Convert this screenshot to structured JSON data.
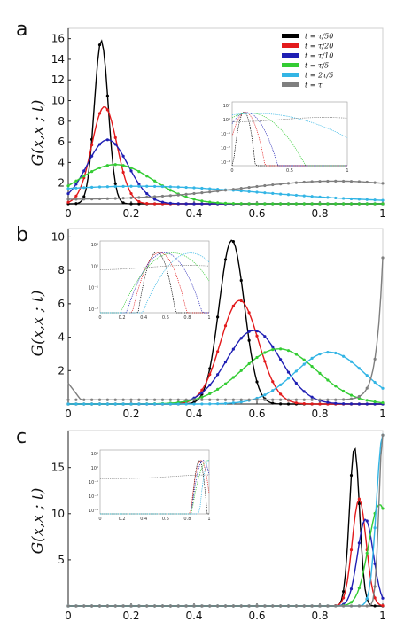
{
  "chart_data": [
    {
      "type": "line",
      "panel_label": "a",
      "ylabel": "G(x,x ; t)",
      "xlim": [
        0,
        1
      ],
      "ylim": [
        0,
        17
      ],
      "x_ticks": [
        "0",
        "0.2",
        "0.4",
        "0.6",
        "0.8",
        "1"
      ],
      "y_ticks": [
        "2",
        "4",
        "6",
        "8",
        "10",
        "12",
        "14",
        "16"
      ],
      "legend": {
        "position": "top-right",
        "entries": [
          {
            "label": "t = τ/50",
            "color": "#000000"
          },
          {
            "label": "t = τ/20",
            "color": "#e31a1c"
          },
          {
            "label": "t = τ/10",
            "color": "#1f1fb4"
          },
          {
            "label": "t = τ/5",
            "color": "#33cc33"
          },
          {
            "label": "t = 2τ/5",
            "color": "#33b5e5"
          },
          {
            "label": "t = τ",
            "color": "#7f7f7f"
          }
        ]
      },
      "series": [
        {
          "color": "#000000",
          "peak_x": 0.105,
          "peak_y": 15.8,
          "width": 0.022
        },
        {
          "color": "#e31a1c",
          "peak_x": 0.115,
          "peak_y": 9.4,
          "width": 0.04
        },
        {
          "color": "#1f1fb4",
          "peak_x": 0.125,
          "peak_y": 6.2,
          "width": 0.065
        },
        {
          "color": "#33cc33",
          "peak_x": 0.15,
          "peak_y": 3.8,
          "width": 0.12
        },
        {
          "color": "#33b5e5",
          "peak_x": 0.2,
          "peak_y": 2.1,
          "width": 0.3
        },
        {
          "color": "#7f7f7f",
          "peak_x": 0.85,
          "peak_y": 2.2,
          "width": 0.35
        }
      ],
      "inset": {
        "x_ticks": [
          "0",
          "0.5",
          "1"
        ],
        "y_ticks": [
          "10¹",
          "10⁰",
          "10⁻¹",
          "10⁻²",
          "10⁻³"
        ]
      }
    },
    {
      "type": "line",
      "panel_label": "b",
      "ylabel": "G(x,x ; t)",
      "xlim": [
        0,
        1
      ],
      "ylim": [
        0,
        10.5
      ],
      "x_ticks": [
        "0",
        "0.2",
        "0.4",
        "0.6",
        "0.8",
        "1"
      ],
      "y_ticks": [
        "2",
        "4",
        "6",
        "8",
        "10"
      ],
      "series": [
        {
          "color": "#000000",
          "peak_x": 0.52,
          "peak_y": 9.8,
          "width": 0.04
        },
        {
          "color": "#e31a1c",
          "peak_x": 0.545,
          "peak_y": 6.2,
          "width": 0.06
        },
        {
          "color": "#1f1fb4",
          "peak_x": 0.59,
          "peak_y": 4.4,
          "width": 0.085
        },
        {
          "color": "#33cc33",
          "peak_x": 0.67,
          "peak_y": 3.3,
          "width": 0.12
        },
        {
          "color": "#33b5e5",
          "peak_x": 0.83,
          "peak_y": 3.1,
          "width": 0.11
        },
        {
          "color": "#7f7f7f",
          "peak_x": 1.0,
          "peak_y": 8.5,
          "width": 0.04
        }
      ],
      "inset": {
        "x_ticks": [
          "0",
          "0.2",
          "0.4",
          "0.6",
          "0.8",
          "1"
        ],
        "y_ticks": [
          "10¹",
          "10⁰",
          "10⁻¹",
          "10⁻²"
        ]
      }
    },
    {
      "type": "line",
      "panel_label": "c",
      "ylabel": "G(x,x ; t)",
      "xlim": [
        0,
        1
      ],
      "ylim": [
        0,
        19
      ],
      "x_ticks": [
        "0",
        "0.2",
        "0.4",
        "0.6",
        "0.8",
        "1"
      ],
      "y_ticks": [
        "5",
        "10",
        "15"
      ],
      "series": [
        {
          "color": "#000000",
          "peak_x": 0.91,
          "peak_y": 17.2,
          "width": 0.016
        },
        {
          "color": "#e31a1c",
          "peak_x": 0.925,
          "peak_y": 11.6,
          "width": 0.022
        },
        {
          "color": "#1f1fb4",
          "peak_x": 0.945,
          "peak_y": 9.4,
          "width": 0.025
        },
        {
          "color": "#33cc33",
          "peak_x": 0.99,
          "peak_y": 11.0,
          "width": 0.035
        },
        {
          "color": "#33b5e5",
          "peak_x": 1.0,
          "peak_y": 18.5,
          "width": 0.02
        },
        {
          "color": "#7f7f7f",
          "peak_x": 1.0,
          "peak_y": 18.5,
          "width": 0.012
        }
      ],
      "inset": {
        "x_ticks": [
          "0",
          "0.2",
          "0.4",
          "0.6",
          "0.8",
          "1"
        ],
        "y_ticks": [
          "10¹",
          "10⁰",
          "10⁻¹",
          "10⁻²",
          "10⁻³"
        ]
      }
    }
  ]
}
